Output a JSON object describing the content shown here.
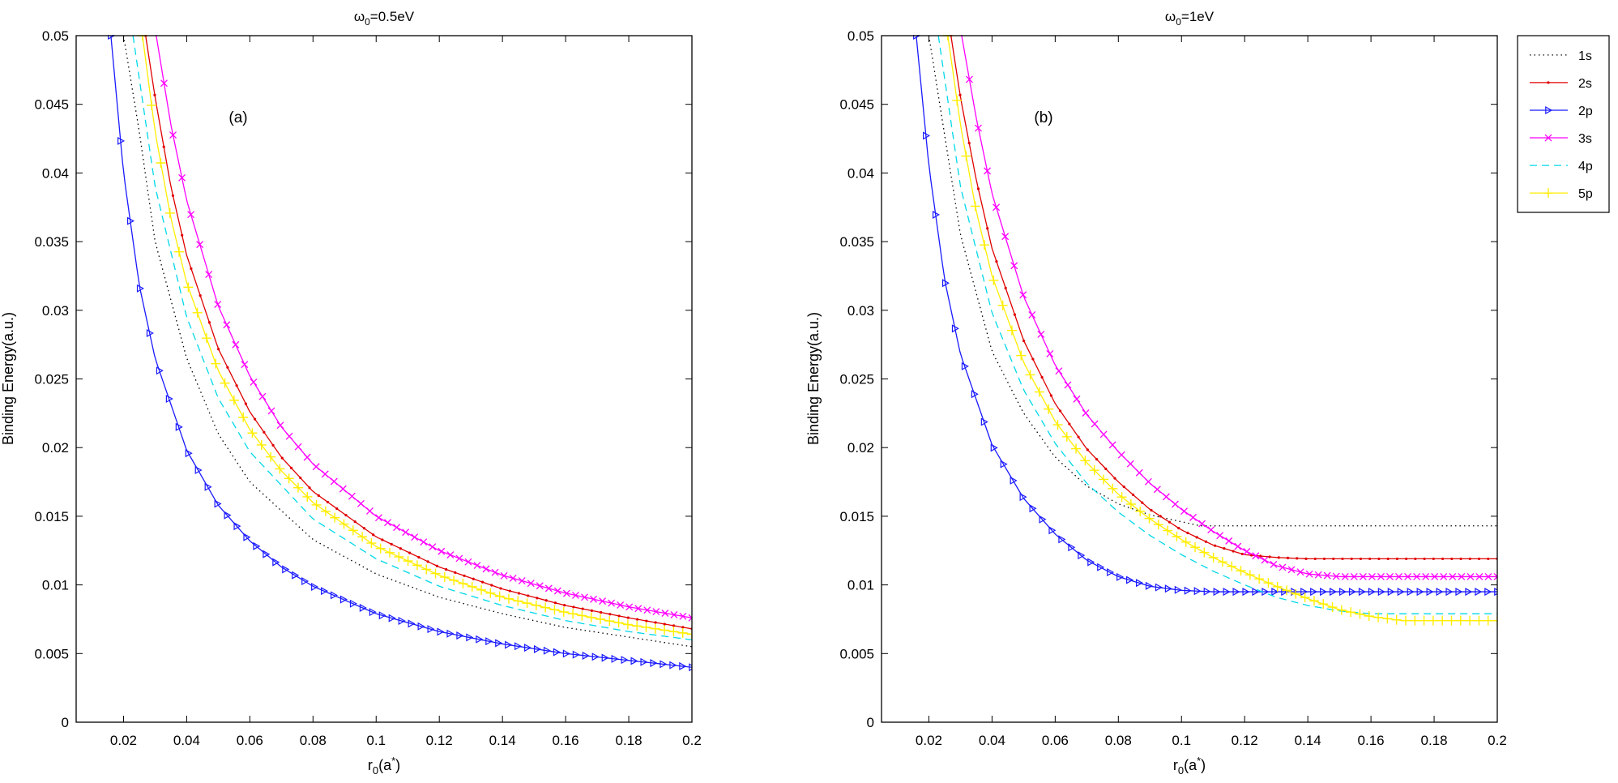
{
  "chart_data": [
    {
      "type": "line",
      "title": "ω₀=0.5eV",
      "title_main": "ω",
      "title_sub": "0",
      "title_rest": "=0.5eV",
      "panel_tag": "(a)",
      "xlabel_main": "r",
      "xlabel_sub": "0",
      "xlabel_paren": "(a",
      "xlabel_sup": "*",
      "xlabel_close": ")",
      "ylabel": "Binding Energy(a.u.)",
      "xlim": [
        0.005,
        0.2
      ],
      "ylim": [
        0,
        0.05
      ],
      "xticks": [
        "0.02",
        "0.04",
        "0.06",
        "0.08",
        "0.1",
        "0.12",
        "0.14",
        "0.16",
        "0.18",
        "0.2"
      ],
      "yticks": [
        "0",
        "0.005",
        "0.01",
        "0.015",
        "0.02",
        "0.025",
        "0.03",
        "0.035",
        "0.04",
        "0.045",
        "0.05"
      ],
      "grid": false,
      "series": [
        {
          "name": "1s",
          "color": "#000000",
          "marker": "none",
          "dash": "dotted",
          "x_start": 0.02,
          "x_end": 0.2,
          "points": [
            [
              0.02,
              0.05
            ],
            [
              0.025,
              0.043
            ],
            [
              0.03,
              0.035
            ],
            [
              0.04,
              0.0265
            ],
            [
              0.05,
              0.021
            ],
            [
              0.06,
              0.0175
            ],
            [
              0.08,
              0.0133
            ],
            [
              0.1,
              0.0108
            ],
            [
              0.12,
              0.0091
            ],
            [
              0.14,
              0.0079
            ],
            [
              0.16,
              0.0069
            ],
            [
              0.18,
              0.0062
            ],
            [
              0.2,
              0.0055
            ]
          ]
        },
        {
          "name": "2s",
          "color": "#e00000",
          "marker": "dot",
          "x_start": 0.027,
          "x_end": 0.2,
          "points": [
            [
              0.027,
              0.05
            ],
            [
              0.03,
              0.0455
            ],
            [
              0.035,
              0.039
            ],
            [
              0.04,
              0.034
            ],
            [
              0.05,
              0.0272
            ],
            [
              0.06,
              0.0226
            ],
            [
              0.07,
              0.0193
            ],
            [
              0.08,
              0.0168
            ],
            [
              0.1,
              0.0135
            ],
            [
              0.12,
              0.0113
            ],
            [
              0.14,
              0.0097
            ],
            [
              0.16,
              0.0085
            ],
            [
              0.18,
              0.0076
            ],
            [
              0.2,
              0.0068
            ]
          ]
        },
        {
          "name": "2p",
          "color": "#1a1aff",
          "marker": "triangle",
          "x_start": 0.016,
          "x_end": 0.2,
          "points": [
            [
              0.016,
              0.05
            ],
            [
              0.02,
              0.04
            ],
            [
              0.025,
              0.0318
            ],
            [
              0.03,
              0.0265
            ],
            [
              0.04,
              0.0198
            ],
            [
              0.05,
              0.0158
            ],
            [
              0.06,
              0.0132
            ],
            [
              0.07,
              0.0113
            ],
            [
              0.08,
              0.0099
            ],
            [
              0.1,
              0.0079
            ],
            [
              0.12,
              0.0066
            ],
            [
              0.14,
              0.0057
            ],
            [
              0.16,
              0.005
            ],
            [
              0.18,
              0.0045
            ],
            [
              0.2,
              0.004
            ]
          ]
        },
        {
          "name": "3s",
          "color": "#ff00ff",
          "marker": "x",
          "x_start": 0.03,
          "x_end": 0.2,
          "points": [
            [
              0.03,
              0.0505
            ],
            [
              0.035,
              0.0435
            ],
            [
              0.04,
              0.038
            ],
            [
              0.05,
              0.0303
            ],
            [
              0.06,
              0.0252
            ],
            [
              0.07,
              0.0215
            ],
            [
              0.08,
              0.0188
            ],
            [
              0.1,
              0.015
            ],
            [
              0.12,
              0.0125
            ],
            [
              0.14,
              0.0107
            ],
            [
              0.16,
              0.0094
            ],
            [
              0.18,
              0.0084
            ],
            [
              0.2,
              0.0076
            ]
          ]
        },
        {
          "name": "4p",
          "color": "#00d8e8",
          "marker": "none",
          "dash": "dashed",
          "x_start": 0.023,
          "x_end": 0.2,
          "points": [
            [
              0.023,
              0.05
            ],
            [
              0.03,
              0.039
            ],
            [
              0.04,
              0.0295
            ],
            [
              0.05,
              0.0236
            ],
            [
              0.06,
              0.0197
            ],
            [
              0.08,
              0.0148
            ],
            [
              0.1,
              0.0119
            ],
            [
              0.12,
              0.0099
            ],
            [
              0.14,
              0.0085
            ],
            [
              0.16,
              0.0074
            ],
            [
              0.18,
              0.0066
            ],
            [
              0.2,
              0.006
            ]
          ]
        },
        {
          "name": "5p",
          "color": "#ffee00",
          "marker": "plus",
          "x_start": 0.026,
          "x_end": 0.2,
          "points": [
            [
              0.026,
              0.05
            ],
            [
              0.03,
              0.043
            ],
            [
              0.035,
              0.0367
            ],
            [
              0.04,
              0.032
            ],
            [
              0.05,
              0.0256
            ],
            [
              0.06,
              0.0213
            ],
            [
              0.07,
              0.0183
            ],
            [
              0.08,
              0.016
            ],
            [
              0.1,
              0.0128
            ],
            [
              0.12,
              0.0107
            ],
            [
              0.14,
              0.0091
            ],
            [
              0.16,
              0.008
            ],
            [
              0.18,
              0.0071
            ],
            [
              0.2,
              0.0064
            ]
          ]
        }
      ]
    },
    {
      "type": "line",
      "title": "ω₀=1eV",
      "title_main": "ω",
      "title_sub": "0",
      "title_rest": "=1eV",
      "panel_tag": "(b)",
      "xlabel_main": "r",
      "xlabel_sub": "0",
      "xlabel_paren": "(a",
      "xlabel_sup": "*",
      "xlabel_close": ")",
      "ylabel": "Binding Energy(a.u.)",
      "xlim": [
        0.005,
        0.2
      ],
      "ylim": [
        0,
        0.05
      ],
      "xticks": [
        "0.02",
        "0.04",
        "0.06",
        "0.08",
        "0.1",
        "0.12",
        "0.14",
        "0.16",
        "0.18",
        "0.2"
      ],
      "yticks": [
        "0",
        "0.005",
        "0.01",
        "0.015",
        "0.02",
        "0.025",
        "0.03",
        "0.035",
        "0.04",
        "0.045",
        "0.05"
      ],
      "grid": false,
      "legend_placement": "outside-top-right",
      "series": [
        {
          "name": "1s",
          "color": "#000000",
          "marker": "none",
          "dash": "dotted",
          "x_start": 0.02,
          "x_end": 0.2,
          "points": [
            [
              0.02,
              0.05
            ],
            [
              0.03,
              0.0355
            ],
            [
              0.04,
              0.027
            ],
            [
              0.05,
              0.0225
            ],
            [
              0.06,
              0.0193
            ],
            [
              0.07,
              0.0172
            ],
            [
              0.08,
              0.0159
            ],
            [
              0.09,
              0.0151
            ],
            [
              0.1,
              0.0146
            ],
            [
              0.106,
              0.0143
            ],
            [
              0.12,
              0.0143
            ],
            [
              0.2,
              0.0143
            ]
          ]
        },
        {
          "name": "2s",
          "color": "#e00000",
          "marker": "dot",
          "x_start": 0.027,
          "x_end": 0.2,
          "points": [
            [
              0.027,
              0.05
            ],
            [
              0.03,
              0.0455
            ],
            [
              0.035,
              0.0395
            ],
            [
              0.04,
              0.0345
            ],
            [
              0.05,
              0.0278
            ],
            [
              0.06,
              0.0232
            ],
            [
              0.07,
              0.0199
            ],
            [
              0.08,
              0.0175
            ],
            [
              0.09,
              0.0155
            ],
            [
              0.1,
              0.014
            ],
            [
              0.11,
              0.0129
            ],
            [
              0.12,
              0.0122
            ],
            [
              0.13,
              0.012
            ],
            [
              0.14,
              0.0119
            ],
            [
              0.2,
              0.0119
            ]
          ]
        },
        {
          "name": "2p",
          "color": "#1a1aff",
          "marker": "triangle",
          "x_start": 0.016,
          "x_end": 0.2,
          "points": [
            [
              0.016,
              0.05
            ],
            [
              0.02,
              0.0405
            ],
            [
              0.025,
              0.0322
            ],
            [
              0.03,
              0.0268
            ],
            [
              0.04,
              0.0202
            ],
            [
              0.05,
              0.0163
            ],
            [
              0.06,
              0.0137
            ],
            [
              0.07,
              0.0118
            ],
            [
              0.08,
              0.0106
            ],
            [
              0.09,
              0.0099
            ],
            [
              0.1,
              0.0096
            ],
            [
              0.11,
              0.0095
            ],
            [
              0.12,
              0.0095
            ],
            [
              0.2,
              0.0095
            ]
          ]
        },
        {
          "name": "3s",
          "color": "#ff00ff",
          "marker": "x",
          "x_start": 0.03,
          "x_end": 0.2,
          "points": [
            [
              0.03,
              0.0505
            ],
            [
              0.035,
              0.044
            ],
            [
              0.04,
              0.0385
            ],
            [
              0.05,
              0.031
            ],
            [
              0.06,
              0.026
            ],
            [
              0.07,
              0.0224
            ],
            [
              0.08,
              0.0197
            ],
            [
              0.09,
              0.0174
            ],
            [
              0.1,
              0.0155
            ],
            [
              0.11,
              0.0139
            ],
            [
              0.12,
              0.0125
            ],
            [
              0.13,
              0.0114
            ],
            [
              0.14,
              0.0108
            ],
            [
              0.15,
              0.0106
            ],
            [
              0.2,
              0.0106
            ]
          ]
        },
        {
          "name": "4p",
          "color": "#00d8e8",
          "marker": "none",
          "dash": "dashed",
          "x_start": 0.023,
          "x_end": 0.2,
          "points": [
            [
              0.023,
              0.05
            ],
            [
              0.03,
              0.039
            ],
            [
              0.04,
              0.0298
            ],
            [
              0.05,
              0.0242
            ],
            [
              0.06,
              0.0203
            ],
            [
              0.07,
              0.0174
            ],
            [
              0.08,
              0.0153
            ],
            [
              0.09,
              0.0136
            ],
            [
              0.1,
              0.0122
            ],
            [
              0.11,
              0.011
            ],
            [
              0.12,
              0.01
            ],
            [
              0.13,
              0.0091
            ],
            [
              0.14,
              0.0085
            ],
            [
              0.15,
              0.0081
            ],
            [
              0.16,
              0.0079
            ],
            [
              0.2,
              0.0079
            ]
          ]
        },
        {
          "name": "5p",
          "color": "#ffee00",
          "marker": "plus",
          "x_start": 0.026,
          "x_end": 0.2,
          "points": [
            [
              0.026,
              0.05
            ],
            [
              0.03,
              0.0435
            ],
            [
              0.035,
              0.0372
            ],
            [
              0.04,
              0.0325
            ],
            [
              0.05,
              0.0262
            ],
            [
              0.06,
              0.0219
            ],
            [
              0.07,
              0.0189
            ],
            [
              0.08,
              0.0166
            ],
            [
              0.09,
              0.0148
            ],
            [
              0.1,
              0.0133
            ],
            [
              0.11,
              0.012
            ],
            [
              0.12,
              0.0109
            ],
            [
              0.13,
              0.0099
            ],
            [
              0.14,
              0.009
            ],
            [
              0.15,
              0.0082
            ],
            [
              0.16,
              0.0077
            ],
            [
              0.17,
              0.0074
            ],
            [
              0.18,
              0.0074
            ],
            [
              0.2,
              0.0074
            ]
          ]
        }
      ]
    }
  ]
}
